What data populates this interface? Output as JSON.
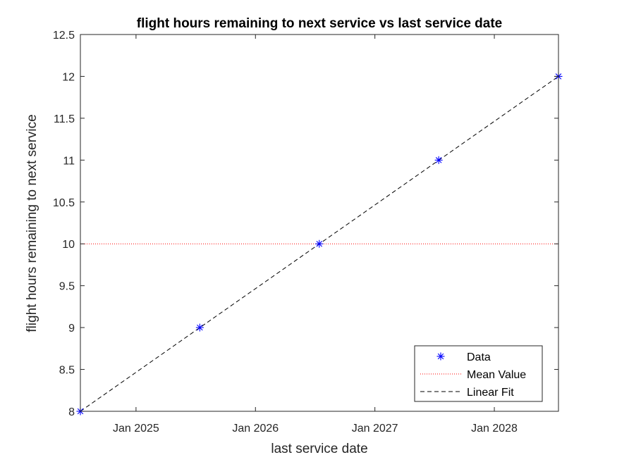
{
  "chart_data": {
    "type": "line",
    "title": "flight hours remaining to next service vs last service date",
    "xlabel": "last service date",
    "ylabel": "flight hours remaining to next service",
    "x_axis_type": "date",
    "xlim": [
      "2024-07-15",
      "2028-07-15"
    ],
    "ylim": [
      8,
      12.5
    ],
    "x_ticks": [
      {
        "date": "2025-01-01",
        "label": "Jan 2025"
      },
      {
        "date": "2026-01-01",
        "label": "Jan 2026"
      },
      {
        "date": "2027-01-01",
        "label": "Jan 2027"
      },
      {
        "date": "2028-01-01",
        "label": "Jan 2028"
      }
    ],
    "y_ticks": [
      {
        "value": 8,
        "label": "8"
      },
      {
        "value": 8.5,
        "label": "8.5"
      },
      {
        "value": 9,
        "label": "9"
      },
      {
        "value": 9.5,
        "label": "9.5"
      },
      {
        "value": 10,
        "label": "10"
      },
      {
        "value": 10.5,
        "label": "10.5"
      },
      {
        "value": 11,
        "label": "11"
      },
      {
        "value": 11.5,
        "label": "11.5"
      },
      {
        "value": 12,
        "label": "12"
      },
      {
        "value": 12.5,
        "label": "12.5"
      }
    ],
    "grid": false,
    "legend_position": "bottom-right",
    "series": [
      {
        "name": "Data",
        "style": "markers",
        "marker": "asterisk",
        "color": "#0000ff",
        "points": [
          {
            "x": "2024-07-15",
            "y": 8
          },
          {
            "x": "2025-07-15",
            "y": 9
          },
          {
            "x": "2026-07-15",
            "y": 10
          },
          {
            "x": "2027-07-15",
            "y": 11
          },
          {
            "x": "2028-07-15",
            "y": 12
          }
        ]
      },
      {
        "name": "Mean Value",
        "style": "dotted-line",
        "color": "#ff0000",
        "y": 10
      },
      {
        "name": "Linear Fit",
        "style": "dashed-line",
        "color": "#000000",
        "points": [
          {
            "x": "2024-07-15",
            "y": 8
          },
          {
            "x": "2028-07-15",
            "y": 12
          }
        ]
      }
    ]
  }
}
